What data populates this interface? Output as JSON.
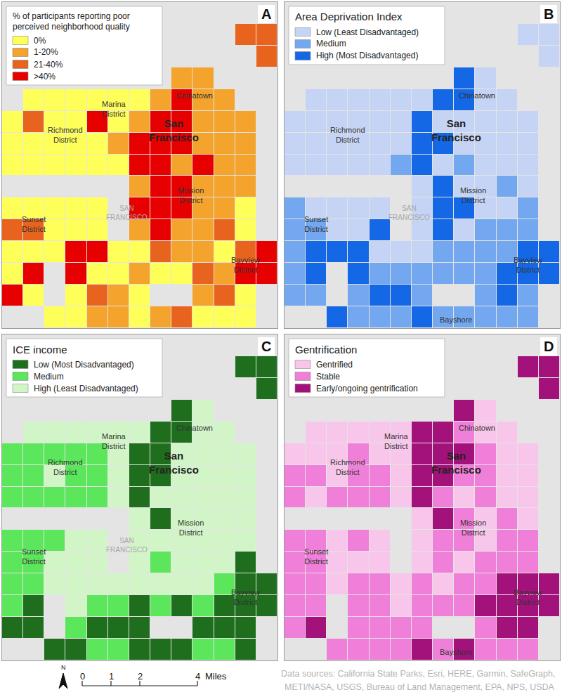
{
  "chart_data": [
    {
      "type": "choropleth",
      "panel": "A",
      "legend": "top left",
      "tick_labels": false,
      "legend_title": "% of participants reporting poor\nperceived neighborhood quality",
      "series": [
        {
          "name": "0%",
          "color": "#ffff5a"
        },
        {
          "name": "1-20%",
          "color": "#f4a32c"
        },
        {
          "name": "21-40%",
          "color": "#e8641e"
        },
        {
          "name": ">40%",
          "color": "#e60000"
        }
      ],
      "places_shown": [
        0,
        1,
        2,
        3,
        4,
        5,
        6,
        7
      ],
      "cells": [
        [
          null,
          null,
          null,
          null,
          null,
          null,
          null,
          null,
          null,
          null,
          null,
          null,
          null
        ],
        [
          null,
          null,
          null,
          null,
          null,
          null,
          null,
          null,
          null,
          null,
          null,
          2,
          2
        ],
        [
          null,
          null,
          null,
          null,
          null,
          null,
          null,
          null,
          null,
          null,
          null,
          null,
          2
        ],
        [
          null,
          null,
          null,
          null,
          null,
          null,
          null,
          null,
          1,
          1,
          null,
          null,
          null
        ],
        [
          null,
          0,
          0,
          0,
          0,
          0,
          0,
          1,
          3,
          1,
          1,
          null,
          null
        ],
        [
          0,
          2,
          0,
          0,
          3,
          0,
          1,
          3,
          3,
          1,
          1,
          1,
          null
        ],
        [
          0,
          0,
          0,
          0,
          0,
          1,
          3,
          3,
          3,
          1,
          1,
          1,
          null
        ],
        [
          0,
          0,
          0,
          0,
          0,
          0,
          3,
          3,
          1,
          3,
          1,
          1,
          null
        ],
        [
          null,
          null,
          null,
          null,
          null,
          null,
          1,
          3,
          3,
          1,
          1,
          1,
          null
        ],
        [
          0,
          0,
          0,
          0,
          0,
          null,
          3,
          3,
          3,
          1,
          1,
          0,
          null
        ],
        [
          2,
          2,
          0,
          0,
          0,
          null,
          1,
          3,
          1,
          1,
          2,
          0,
          null
        ],
        [
          0,
          0,
          0,
          3,
          3,
          0,
          0,
          2,
          1,
          1,
          0,
          2,
          3
        ],
        [
          0,
          3,
          null,
          3,
          0,
          0,
          1,
          0,
          0,
          2,
          1,
          3,
          3
        ],
        [
          3,
          0,
          null,
          0,
          2,
          1,
          0,
          null,
          null,
          1,
          2,
          0,
          null
        ],
        [
          null,
          null,
          0,
          0,
          1,
          1,
          0,
          1,
          2,
          0,
          0,
          0,
          null
        ]
      ]
    },
    {
      "type": "choropleth",
      "panel": "B",
      "legend": "top left",
      "tick_labels": false,
      "legend_title": "Area Deprivation Index",
      "series": [
        {
          "name": "Low (Least Disadvantaged)",
          "color": "#c5d4f5"
        },
        {
          "name": "Medium",
          "color": "#73a7ef"
        },
        {
          "name": "High (Most Disadvantaged)",
          "color": "#1468e6"
        }
      ],
      "places_shown": [
        1,
        2,
        3,
        4,
        5,
        6,
        7,
        8
      ],
      "cells": [
        [
          null,
          null,
          null,
          null,
          null,
          null,
          null,
          null,
          null,
          null,
          null,
          null,
          null
        ],
        [
          null,
          null,
          null,
          null,
          null,
          null,
          null,
          null,
          null,
          null,
          null,
          0,
          0
        ],
        [
          null,
          null,
          null,
          null,
          null,
          null,
          null,
          null,
          null,
          null,
          null,
          null,
          0
        ],
        [
          null,
          null,
          null,
          null,
          null,
          null,
          null,
          null,
          2,
          0,
          null,
          null,
          null
        ],
        [
          null,
          0,
          0,
          0,
          0,
          0,
          0,
          2,
          2,
          0,
          0,
          null,
          null
        ],
        [
          0,
          0,
          0,
          0,
          0,
          0,
          2,
          0,
          0,
          0,
          0,
          0,
          null
        ],
        [
          0,
          0,
          0,
          0,
          0,
          0,
          2,
          2,
          0,
          0,
          0,
          0,
          null
        ],
        [
          0,
          0,
          0,
          0,
          0,
          1,
          2,
          0,
          1,
          0,
          0,
          0,
          null
        ],
        [
          null,
          null,
          null,
          null,
          null,
          null,
          0,
          2,
          0,
          0,
          1,
          0,
          null
        ],
        [
          1,
          0,
          0,
          0,
          0,
          null,
          0,
          2,
          2,
          0,
          0,
          1,
          null
        ],
        [
          1,
          1,
          0,
          0,
          2,
          null,
          0,
          2,
          0,
          1,
          1,
          1,
          null
        ],
        [
          1,
          2,
          2,
          2,
          0,
          0,
          0,
          1,
          1,
          1,
          1,
          2,
          2
        ],
        [
          1,
          2,
          null,
          2,
          1,
          1,
          1,
          1,
          1,
          1,
          2,
          2,
          2
        ],
        [
          1,
          1,
          null,
          1,
          2,
          2,
          1,
          null,
          null,
          1,
          2,
          1,
          null
        ],
        [
          null,
          null,
          2,
          1,
          1,
          1,
          2,
          1,
          1,
          1,
          1,
          1,
          null
        ]
      ]
    },
    {
      "type": "choropleth",
      "panel": "C",
      "legend": "top left",
      "tick_labels": false,
      "legend_title": "ICE income",
      "series": [
        {
          "name": "Low (Most Disadvantaged)",
          "color": "#1e6e1e"
        },
        {
          "name": "Medium",
          "color": "#5ce65c"
        },
        {
          "name": "High (Least Disadvantaged)",
          "color": "#d2f5c8"
        }
      ],
      "places_shown": [
        0,
        1,
        2,
        3,
        4,
        5,
        6,
        7
      ],
      "cells": [
        [
          null,
          null,
          null,
          null,
          null,
          null,
          null,
          null,
          null,
          null,
          null,
          null,
          null
        ],
        [
          null,
          null,
          null,
          null,
          null,
          null,
          null,
          null,
          null,
          null,
          null,
          0,
          0
        ],
        [
          null,
          null,
          null,
          null,
          null,
          null,
          null,
          null,
          null,
          null,
          null,
          null,
          0
        ],
        [
          null,
          null,
          null,
          null,
          null,
          null,
          null,
          null,
          0,
          2,
          null,
          null,
          null
        ],
        [
          null,
          2,
          2,
          2,
          2,
          2,
          2,
          0,
          0,
          2,
          2,
          null,
          null
        ],
        [
          1,
          1,
          1,
          1,
          1,
          2,
          0,
          0,
          2,
          2,
          2,
          2,
          null
        ],
        [
          1,
          1,
          2,
          1,
          1,
          2,
          0,
          0,
          2,
          2,
          2,
          2,
          null
        ],
        [
          1,
          1,
          1,
          1,
          1,
          2,
          0,
          2,
          2,
          2,
          2,
          2,
          null
        ],
        [
          null,
          null,
          null,
          null,
          null,
          null,
          2,
          0,
          2,
          2,
          2,
          2,
          null
        ],
        [
          1,
          1,
          1,
          2,
          2,
          null,
          2,
          2,
          2,
          2,
          2,
          2,
          null
        ],
        [
          1,
          1,
          2,
          2,
          2,
          null,
          2,
          1,
          2,
          2,
          2,
          0,
          null
        ],
        [
          1,
          1,
          2,
          2,
          2,
          2,
          2,
          2,
          2,
          2,
          1,
          0,
          0
        ],
        [
          1,
          0,
          null,
          2,
          1,
          1,
          0,
          1,
          0,
          1,
          0,
          0,
          0
        ],
        [
          0,
          0,
          null,
          1,
          0,
          0,
          0,
          null,
          null,
          0,
          0,
          0,
          null
        ],
        [
          null,
          null,
          0,
          0,
          1,
          1,
          0,
          0,
          0,
          1,
          1,
          0,
          null
        ]
      ]
    },
    {
      "type": "choropleth",
      "panel": "D",
      "legend": "top left",
      "tick_labels": false,
      "legend_title": "Gentrification",
      "series": [
        {
          "name": "Gentrified",
          "color": "#f7c6ea"
        },
        {
          "name": "Stable",
          "color": "#f07fd9"
        },
        {
          "name": "Early/ongoing gentrification",
          "color": "#a3127a"
        }
      ],
      "places_shown": [
        0,
        1,
        2,
        3,
        4,
        5,
        7,
        8
      ],
      "cells": [
        [
          null,
          null,
          null,
          null,
          null,
          null,
          null,
          null,
          null,
          null,
          null,
          null,
          null
        ],
        [
          null,
          null,
          null,
          null,
          null,
          null,
          null,
          null,
          null,
          null,
          null,
          2,
          2
        ],
        [
          null,
          null,
          null,
          null,
          null,
          null,
          null,
          null,
          null,
          null,
          null,
          null,
          2
        ],
        [
          null,
          null,
          null,
          null,
          null,
          null,
          null,
          null,
          2,
          0,
          null,
          null,
          null
        ],
        [
          null,
          0,
          0,
          0,
          0,
          0,
          2,
          2,
          1,
          0,
          0,
          null,
          null
        ],
        [
          0,
          0,
          0,
          1,
          0,
          0,
          2,
          2,
          2,
          1,
          0,
          0,
          null
        ],
        [
          1,
          1,
          0,
          1,
          1,
          0,
          2,
          2,
          1,
          1,
          0,
          0,
          null
        ],
        [
          1,
          0,
          1,
          1,
          1,
          0,
          2,
          1,
          0,
          1,
          0,
          0,
          null
        ],
        [
          null,
          null,
          null,
          null,
          null,
          null,
          0,
          2,
          1,
          0,
          1,
          0,
          null
        ],
        [
          1,
          1,
          0,
          1,
          0,
          null,
          0,
          1,
          1,
          0,
          1,
          1,
          null
        ],
        [
          1,
          1,
          0,
          0,
          0,
          null,
          0,
          1,
          0,
          1,
          1,
          1,
          null
        ],
        [
          1,
          1,
          0,
          1,
          1,
          0,
          1,
          0,
          1,
          1,
          2,
          2,
          2
        ],
        [
          1,
          1,
          null,
          1,
          1,
          0,
          1,
          1,
          1,
          2,
          2,
          2,
          2
        ],
        [
          1,
          2,
          null,
          1,
          1,
          1,
          1,
          null,
          null,
          1,
          2,
          2,
          null
        ],
        [
          null,
          null,
          1,
          1,
          1,
          1,
          2,
          1,
          2,
          1,
          1,
          1,
          null
        ]
      ]
    }
  ],
  "places": [
    "Marina\nDistrict",
    "Chinatown",
    "Richmond\nDistrict",
    "San\nFrancisco",
    "Mission\nDistrict",
    "Sunset\nDistrict",
    "SAN\nFRANCISCO",
    "Bayview\nDistrict",
    "Bayshore"
  ],
  "scale_bar": {
    "ticks": [
      0,
      1,
      2,
      4
    ],
    "unit": "Miles"
  },
  "north_arrow": "N",
  "sources": [
    "Data sources: California State Parks, Esri, HERE, Garmin, SafeGraph,",
    "METI/NASA, USGS, Bureau of Land Management, EPA, NPS, USDA"
  ]
}
